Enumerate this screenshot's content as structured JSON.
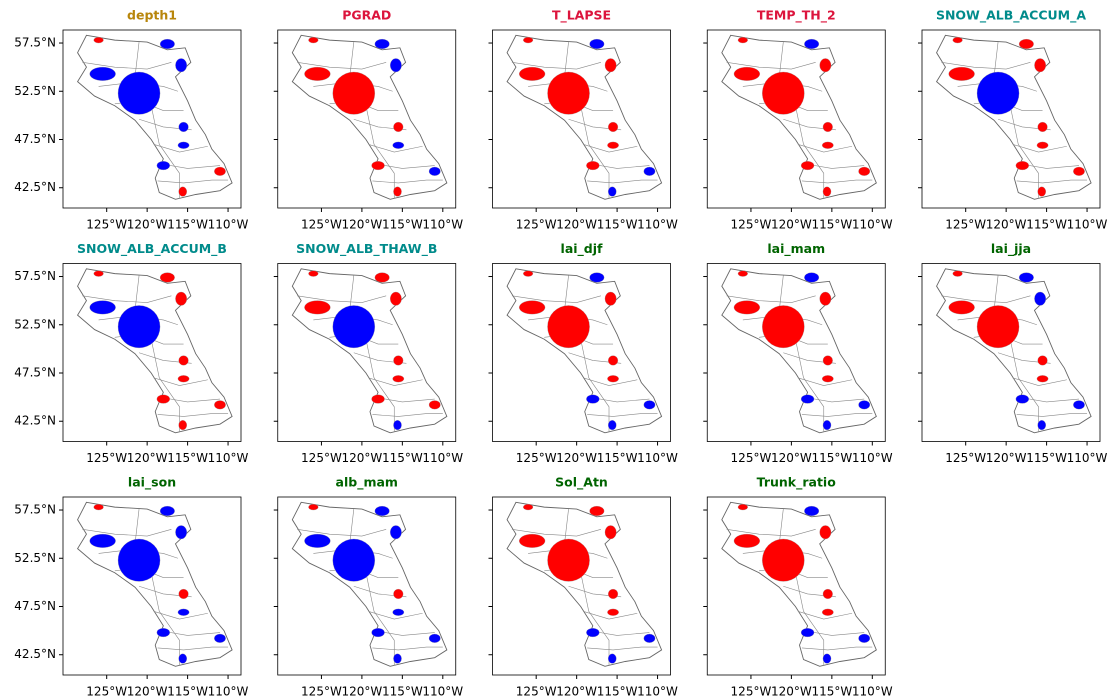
{
  "panels": [
    {
      "title": "depth1",
      "title_color": "#b8860b"
    },
    {
      "title": "PGRAD",
      "title_color": "#dc143c"
    },
    {
      "title": "T_LAPSE",
      "title_color": "#dc143c"
    },
    {
      "title": "TEMP_TH_2",
      "title_color": "#dc143c"
    },
    {
      "title": "SNOW_ALB_ACCUM_A",
      "title_color": "#008b8b"
    },
    {
      "title": "SNOW_ALB_ACCUM_B",
      "title_color": "#008b8b"
    },
    {
      "title": "SNOW_ALB_THAW_B",
      "title_color": "#008b8b"
    },
    {
      "title": "lai_djf",
      "title_color": "#006400"
    },
    {
      "title": "lai_mam",
      "title_color": "#006400"
    },
    {
      "title": "lai_jja",
      "title_color": "#006400"
    },
    {
      "title": "lai_son",
      "title_color": "#006400"
    },
    {
      "title": "alb_mam",
      "title_color": "#006400"
    },
    {
      "title": "Sol_Atn",
      "title_color": "#006400"
    },
    {
      "title": "Trunk_ratio",
      "title_color": "#006400"
    }
  ],
  "xlim": [
    -130.4,
    -108.4
  ],
  "ylim": [
    40.4,
    58.85
  ],
  "xticks": [
    {
      "value": -125,
      "label": "125°W"
    },
    {
      "value": -120,
      "label": "120°W"
    },
    {
      "value": -115,
      "label": "115°W"
    },
    {
      "value": -110,
      "label": "110°W"
    }
  ],
  "yticks": [
    {
      "value": 42.5,
      "label": "42.5°N"
    },
    {
      "value": 47.5,
      "label": "47.5°N"
    },
    {
      "value": 52.5,
      "label": "52.5°N"
    },
    {
      "value": 57.5,
      "label": "57.5°N"
    }
  ]
}
